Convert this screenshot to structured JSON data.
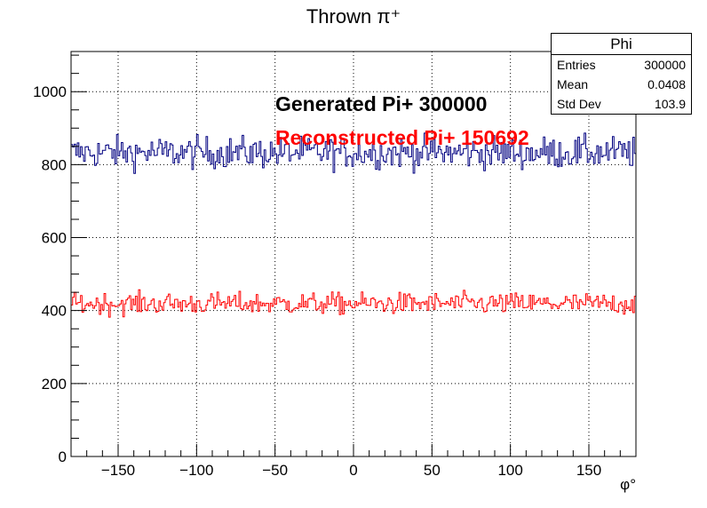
{
  "chart_data": {
    "type": "histogram",
    "title": "Thrown π⁺",
    "xlabel": "φ°",
    "ylabel": "",
    "xlim": [
      -180,
      180
    ],
    "ylim": [
      0,
      1110
    ],
    "grid": true,
    "x_ticks": [
      -150,
      -100,
      -50,
      0,
      50,
      100,
      150
    ],
    "x_tick_labels": [
      "−150",
      "−100",
      "−50",
      "0",
      "50",
      "100",
      "150"
    ],
    "y_ticks": [
      0,
      200,
      400,
      600,
      800,
      1000
    ],
    "y_tick_labels": [
      "0",
      "200",
      "400",
      "600",
      "800",
      "1000"
    ],
    "bins": 360,
    "series": [
      {
        "name": "Generated Pi+",
        "color": "#000080",
        "mean": 833,
        "spread": 22,
        "total": 300000
      },
      {
        "name": "Reconstructed Pi+",
        "color": "#ff0000",
        "mean": 419,
        "spread": 15,
        "total": 150692
      }
    ],
    "annotations": [
      {
        "text": "Generated Pi+ 300000",
        "color": "#000000"
      },
      {
        "text": "Reconstructed Pi+ 150692",
        "color": "#ff0000"
      }
    ],
    "stats": {
      "title": "Phi",
      "rows": [
        {
          "label": "Entries",
          "value": "300000"
        },
        {
          "label": "Mean",
          "value": "0.0408"
        },
        {
          "label": "Std Dev",
          "value": "103.9"
        }
      ]
    }
  }
}
